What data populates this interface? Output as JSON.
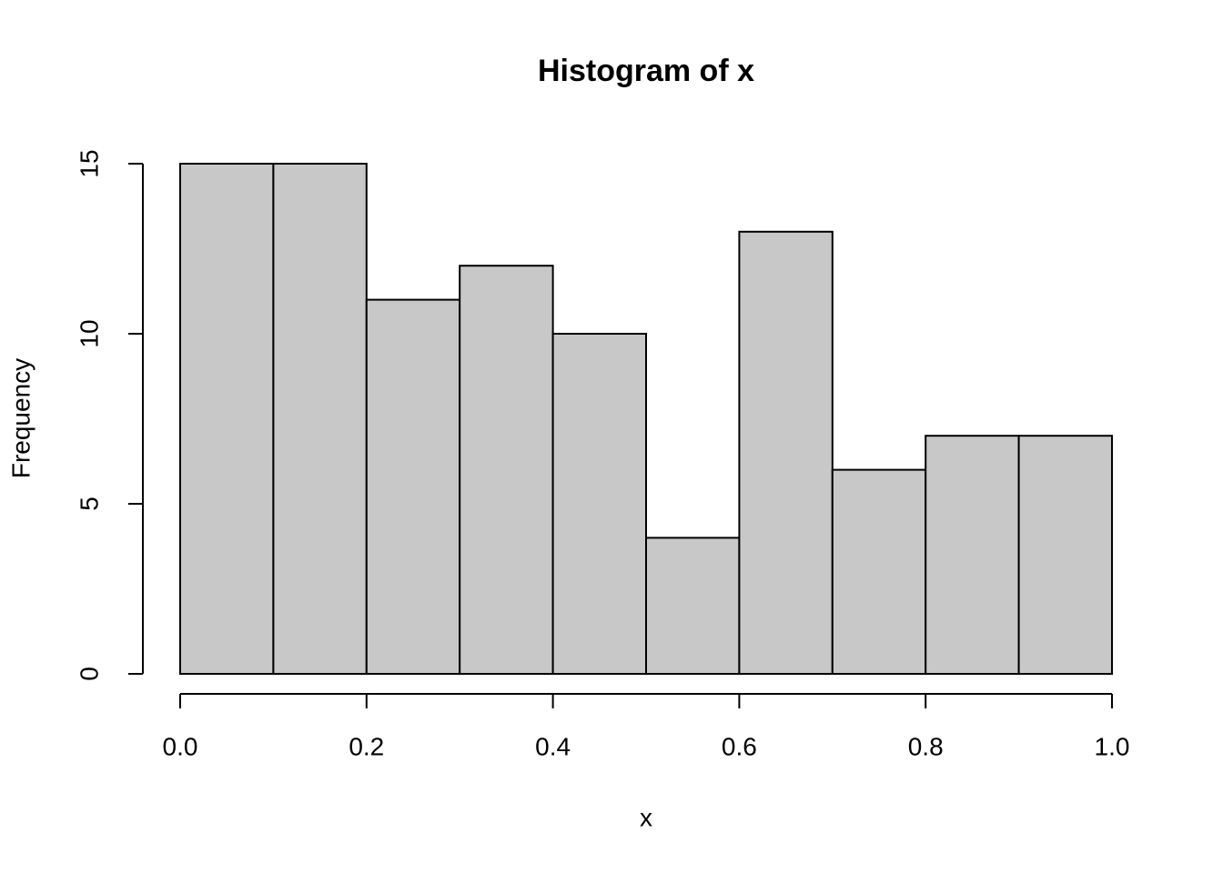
{
  "chart_data": {
    "type": "histogram",
    "title": "Histogram of x",
    "x_label": "x",
    "y_label": "Frequency",
    "bins": [
      0,
      0.1,
      0.2,
      0.3,
      0.4,
      0.5,
      0.6,
      0.7,
      0.8,
      0.9,
      1
    ],
    "values": [
      15,
      15,
      11,
      12,
      10,
      4,
      13,
      6,
      7,
      7
    ],
    "color": "#c8c8c8",
    "edge_color": "#000000",
    "xlim": [
      0,
      1
    ],
    "xticks": [
      {
        "value": 0,
        "label": "0.0"
      },
      0.2,
      0.4,
      0.6,
      0.8,
      {
        "value": 1,
        "label": "1.0"
      }
    ],
    "ylim": [
      0,
      15
    ],
    "yticks": [
      0,
      5,
      10,
      15
    ],
    "grid": false
  }
}
